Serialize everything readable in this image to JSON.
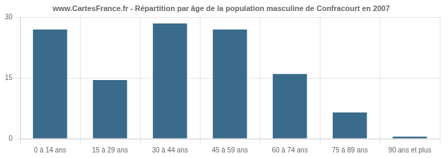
{
  "chart_data": {
    "type": "bar",
    "title": "www.CartesFrance.fr - Répartition par âge de la population masculine de Confracourt en 2007",
    "categories": [
      "0 à 14 ans",
      "15 à 29 ans",
      "30 à 44 ans",
      "45 à 59 ans",
      "60 à 74 ans",
      "75 à 89 ans",
      "90 ans et plus"
    ],
    "values": [
      27,
      14.5,
      28.5,
      27,
      16,
      6.5,
      0.5
    ],
    "color": "#3a6b8a",
    "ylim": [
      0,
      30
    ],
    "yticks": [
      0,
      15,
      30
    ],
    "grid": true
  }
}
